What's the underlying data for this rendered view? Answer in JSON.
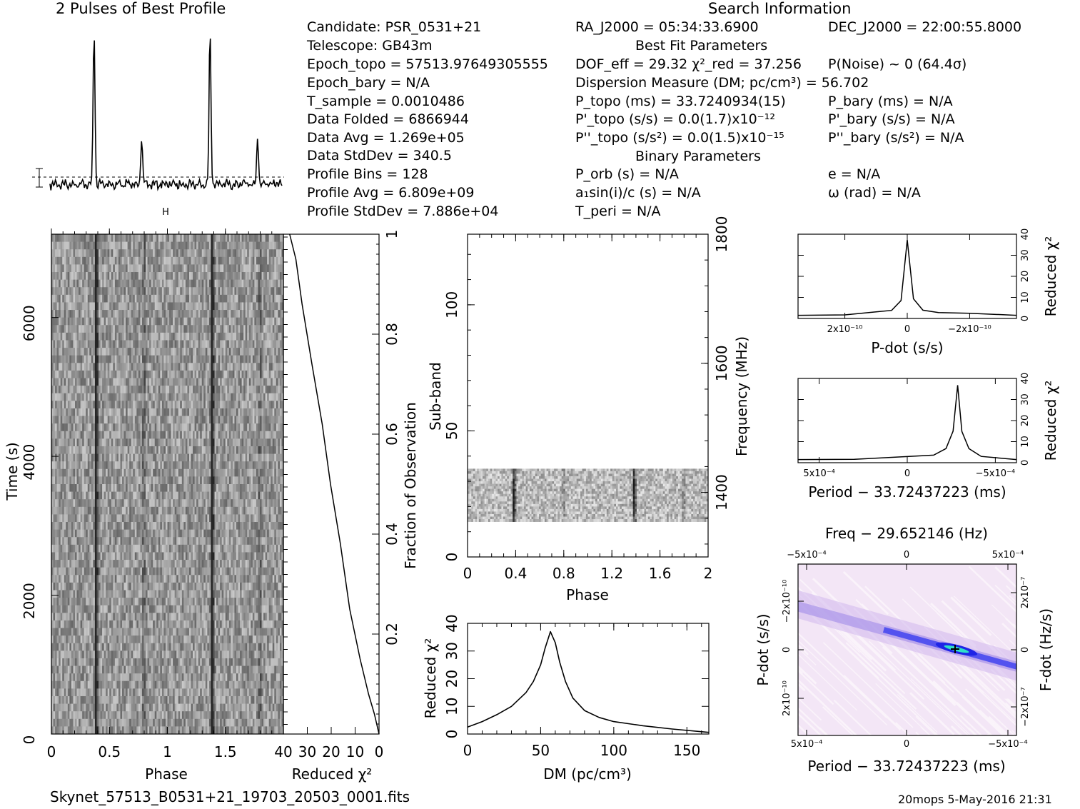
{
  "titles": {
    "profile": "2 Pulses of Best Profile",
    "search": "Search Information",
    "best_fit": "Best Fit Parameters",
    "binary": "Binary Parameters"
  },
  "info_col1": [
    "Candidate:  PSR_0531+21",
    "Telescope:  GB43m",
    "Epoch_topo = 57513.97649305555",
    "Epoch_bary = N/A",
    "T_sample  =  0.0010486",
    "Data Folded  =  6866944",
    "Data Avg  =  1.269e+05",
    "Data StdDev  =  340.5",
    "Profile Bins  =  128",
    "Profile Avg  =  6.809e+09",
    "Profile StdDev  =  7.886e+04"
  ],
  "info_col2": [
    "RA_J2000 = 05:34:33.6900",
    "DOF_eff = 29.32  χ²_red = 37.256",
    "Dispersion Measure (DM; pc/cm³) = 56.702",
    "P_topo (ms) =  33.7240934(15)",
    "P'_topo (s/s) = 0.0(1.7)x10⁻¹²",
    "P''_topo (s/s²) = 0.0(1.5)x10⁻¹⁵",
    "P_orb (s) = N/A",
    "a₁sin(i)/c (s) = N/A",
    "T_peri = N/A"
  ],
  "info_col3": [
    "DEC_J2000 = 22:00:55.8000",
    "P(Noise) ~ 0   (64.4σ)",
    "P_bary (ms) = N/A",
    "P'_bary (s/s) = N/A",
    "P''_bary (s/s²) = N/A",
    "e = N/A",
    "ω (rad) = N/A"
  ],
  "footer": {
    "filename": "Skynet_57513_B0531+21_19703_20503_0001.fits",
    "stamp": "20mops  5-May-2016 21:31"
  },
  "chart_data": [
    {
      "type": "line",
      "panel": "profile",
      "title": "2 Pulses of Best Profile",
      "xlim": [
        0,
        2
      ],
      "peaks": [
        {
          "phase": 0.38,
          "height": 1.0
        },
        {
          "phase": 0.79,
          "height": 0.3
        },
        {
          "phase": 1.38,
          "height": 1.0
        },
        {
          "phase": 1.79,
          "height": 0.3
        }
      ]
    },
    {
      "type": "heatmap",
      "panel": "time-phase",
      "xlabel": "Phase",
      "ylabel": "Time (s)",
      "xlim": [
        0,
        2
      ],
      "ylim": [
        0,
        7200
      ],
      "x_ticks": [
        "0",
        "0.5",
        "1",
        "1.5"
      ],
      "y_ticks": [
        "0",
        "2000",
        "4000",
        "6000"
      ],
      "pulse_phases": [
        0.38,
        0.79,
        1.38,
        1.79
      ]
    },
    {
      "type": "line",
      "panel": "time-chi2",
      "xlabel": "Reduced χ²",
      "ylabel": "Fraction of Observation",
      "xlim": [
        40,
        0
      ],
      "ylim": [
        0,
        1
      ],
      "x_ticks": [
        "40",
        "30",
        "20",
        "10",
        "0"
      ],
      "y_ticks": [
        "0.2",
        "0.4",
        "0.6",
        "0.8",
        "1"
      ],
      "x": [
        0,
        2,
        4.5,
        8,
        12,
        16,
        20,
        24,
        28,
        32,
        35,
        37.3
      ],
      "y": [
        0,
        0.04,
        0.08,
        0.15,
        0.25,
        0.38,
        0.5,
        0.62,
        0.74,
        0.86,
        0.95,
        1.0
      ]
    },
    {
      "type": "heatmap",
      "panel": "subband-phase",
      "xlabel": "Phase",
      "ylabel": "Sub-band",
      "y2label": "Frequency (MHz)",
      "xlim": [
        0,
        2
      ],
      "ylim": [
        0,
        128
      ],
      "x_ticks": [
        "0",
        "0.4",
        "0.8",
        "1.2",
        "1.6",
        "2"
      ],
      "y_ticks": [
        "0",
        "50",
        "100"
      ],
      "y2_ticks": [
        "1400",
        "1600",
        "1800"
      ],
      "data_subbands": [
        14,
        35
      ],
      "pulse_phases": [
        0.38,
        0.79,
        1.38,
        1.79
      ]
    },
    {
      "type": "line",
      "panel": "dm",
      "xlabel": "DM (pc/cm³)",
      "ylabel": "Reduced χ²",
      "xlim": [
        0,
        165
      ],
      "ylim": [
        0,
        40
      ],
      "x_ticks": [
        "0",
        "50",
        "100",
        "150"
      ],
      "y_ticks": [
        "0",
        "10",
        "20",
        "30",
        "40"
      ],
      "x": [
        0,
        10,
        20,
        30,
        40,
        45,
        50,
        53,
        56.7,
        60,
        63,
        67,
        72,
        80,
        90,
        100,
        120,
        140,
        165
      ],
      "y": [
        2.5,
        4.5,
        7,
        10,
        15,
        19,
        25,
        31,
        37,
        33,
        26,
        19,
        13,
        8.5,
        6,
        4.5,
        3,
        1.8,
        0.6
      ]
    },
    {
      "type": "line",
      "panel": "pdot",
      "xlabel": "P-dot (s/s)",
      "ylabel": "Reduced χ²",
      "xlim": [
        3.5e-10,
        -3.5e-10
      ],
      "ylim": [
        0,
        40
      ],
      "x_ticks": [
        "2x10⁻¹⁰",
        "0",
        "−2x10⁻¹⁰"
      ],
      "y_ticks": [
        "0",
        "10",
        "20",
        "30",
        "40"
      ],
      "x": [
        3.5e-10,
        2e-10,
        1e-10,
        5e-11,
        2e-11,
        0,
        -2e-11,
        -5e-11,
        -1e-10,
        -2e-10,
        -3.5e-10
      ],
      "y": [
        1.5,
        2,
        3,
        4,
        9,
        37,
        9,
        4,
        3,
        2,
        1.5
      ]
    },
    {
      "type": "line",
      "panel": "period",
      "xlabel": "Period − 33.72437223 (ms)",
      "ylabel": "Reduced χ²",
      "xlim": [
        0.00062,
        -0.00062
      ],
      "ylim": [
        0,
        40
      ],
      "x_ticks": [
        "5x10⁻⁴",
        "0",
        "−5x10⁻⁴"
      ],
      "y_ticks": [
        "0",
        "10",
        "20",
        "30",
        "40"
      ],
      "x": [
        0.00062,
        0.0003,
        0,
        -0.00015,
        -0.00022,
        -0.00026,
        -0.000286,
        -0.00031,
        -0.00035,
        -0.00042,
        -0.00062
      ],
      "y": [
        1.5,
        2,
        2.5,
        3.5,
        7,
        15,
        37,
        15,
        7,
        3,
        1.5
      ]
    },
    {
      "type": "heatmap",
      "panel": "period-pdot",
      "title": "Freq − 29.652146 (Hz)",
      "xlabel": "Period − 33.72437223 (ms)",
      "ylabel": "P-dot (s/s)",
      "y2label": "F-dot (Hz/s)",
      "xlim": [
        0.00062,
        -0.00062
      ],
      "ylim": [
        -3.5e-10,
        3.5e-10
      ],
      "x_ticks": [
        "5x10⁻⁴",
        "0",
        "−5x10⁻⁴"
      ],
      "x2_ticks": [
        "−5x10⁻⁴",
        "0",
        "5x10⁻⁴"
      ],
      "y_ticks": [
        "−2x10⁻¹⁰",
        "0",
        "2x10⁻¹⁰"
      ],
      "y2_ticks": [
        "2x10⁻⁷",
        "0",
        "−2x10⁻⁷"
      ],
      "best": {
        "x": -0.000286,
        "y": 0
      }
    }
  ]
}
